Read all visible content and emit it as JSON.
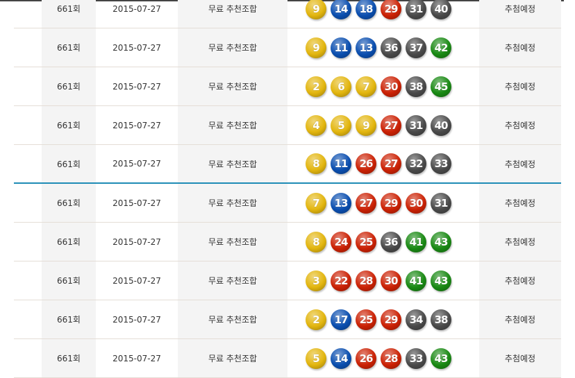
{
  "ball_colors": {
    "1-10": "#e3b60f",
    "11-20": "#0b4fb0",
    "21-30": "#cc2205",
    "31-40": "#4a4a4a",
    "41-45": "#1a8a14"
  },
  "rows": [
    {
      "round": "661회",
      "date": "2015-07-27",
      "type": "무료 추천조합",
      "numbers": [
        9,
        14,
        18,
        29,
        31,
        40
      ],
      "status": "추첨예정"
    },
    {
      "round": "661회",
      "date": "2015-07-27",
      "type": "무료 추천조합",
      "numbers": [
        9,
        11,
        13,
        36,
        37,
        42
      ],
      "status": "추첨예정"
    },
    {
      "round": "661회",
      "date": "2015-07-27",
      "type": "무료 추천조합",
      "numbers": [
        2,
        6,
        7,
        30,
        38,
        45
      ],
      "status": "추첨예정"
    },
    {
      "round": "661회",
      "date": "2015-07-27",
      "type": "무료 추천조합",
      "numbers": [
        4,
        5,
        9,
        27,
        31,
        40
      ],
      "status": "추첨예정"
    },
    {
      "round": "661회",
      "date": "2015-07-27",
      "type": "무료 추천조합",
      "numbers": [
        8,
        11,
        26,
        27,
        32,
        33
      ],
      "status": "추첨예정"
    },
    {
      "round": "661회",
      "date": "2015-07-27",
      "type": "무료 추천조합",
      "numbers": [
        7,
        13,
        27,
        29,
        30,
        31
      ],
      "status": "추첨예정"
    },
    {
      "round": "661회",
      "date": "2015-07-27",
      "type": "무료 추천조합",
      "numbers": [
        8,
        24,
        25,
        36,
        41,
        43
      ],
      "status": "추첨예정"
    },
    {
      "round": "661회",
      "date": "2015-07-27",
      "type": "무료 추천조합",
      "numbers": [
        3,
        22,
        28,
        30,
        41,
        43
      ],
      "status": "추첨예정"
    },
    {
      "round": "661회",
      "date": "2015-07-27",
      "type": "무료 추천조합",
      "numbers": [
        2,
        17,
        25,
        29,
        34,
        38
      ],
      "status": "추첨예정"
    },
    {
      "round": "661회",
      "date": "2015-07-27",
      "type": "무료 추천조합",
      "numbers": [
        5,
        14,
        26,
        28,
        33,
        43
      ],
      "status": "추첨예정"
    }
  ]
}
